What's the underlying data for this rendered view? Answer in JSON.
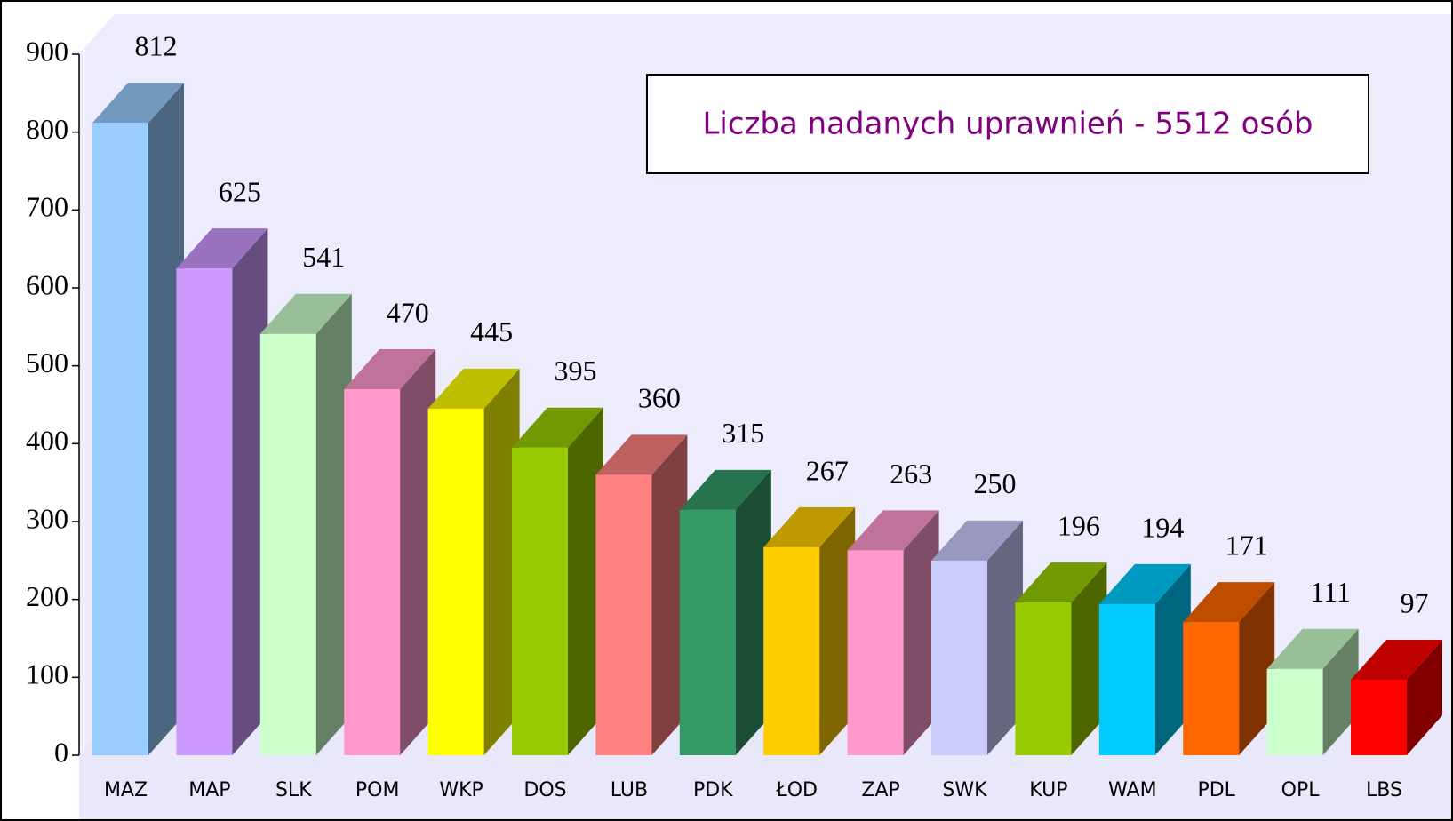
{
  "chart_data": {
    "type": "bar3d",
    "annotation": "Liczba nadanych uprawnień - 5512 osób",
    "categories": [
      "MAZ",
      "MAP",
      "SLK",
      "POM",
      "WKP",
      "DOS",
      "LUB",
      "PDK",
      "ŁOD",
      "ZAP",
      "SWK",
      "KUP",
      "WAM",
      "PDL",
      "OPL",
      "LBS"
    ],
    "values": [
      812,
      625,
      541,
      470,
      445,
      395,
      360,
      315,
      267,
      263,
      250,
      196,
      194,
      171,
      111,
      97
    ],
    "colors": [
      "#99ccff",
      "#cc99ff",
      "#ccffcc",
      "#ff99cc",
      "#ffff00",
      "#99cc00",
      "#ff8080",
      "#339966",
      "#ffcc00",
      "#ff99cc",
      "#ccccff",
      "#99cc00",
      "#00ccff",
      "#ff6600",
      "#ccffcc",
      "#ff0000"
    ],
    "ylim": [
      0,
      900
    ],
    "yticks": [
      0,
      100,
      200,
      300,
      400,
      500,
      600,
      700,
      800,
      900
    ]
  }
}
